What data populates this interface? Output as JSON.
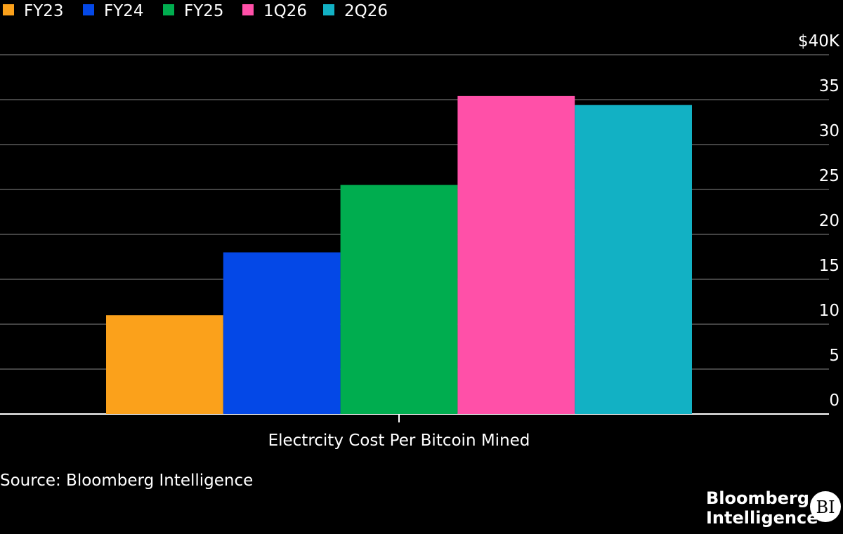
{
  "chart_data": {
    "type": "bar",
    "categories": [
      "Electrcity Cost Per Bitcoin Mined"
    ],
    "series": [
      {
        "name": "FY23",
        "color": "#fba11b",
        "values": [
          11
        ]
      },
      {
        "name": "FY24",
        "color": "#0448e7",
        "values": [
          18
        ]
      },
      {
        "name": "FY25",
        "color": "#00ad4f",
        "values": [
          25.5
        ]
      },
      {
        "name": "1Q26",
        "color": "#ff50a8",
        "values": [
          35.4
        ]
      },
      {
        "name": "2Q26",
        "color": "#12b1c4",
        "values": [
          34.4
        ]
      }
    ],
    "ylim": [
      0,
      40
    ],
    "yticks": [
      0,
      5,
      10,
      15,
      20,
      25,
      30,
      35,
      {
        "value": 40,
        "label": "$40K"
      }
    ],
    "grid": true,
    "legend": "top",
    "source": "Source: Bloomberg Intelligence"
  },
  "branding": {
    "line1": "Bloomberg",
    "line2": "Intelligence",
    "badge": "BI"
  }
}
